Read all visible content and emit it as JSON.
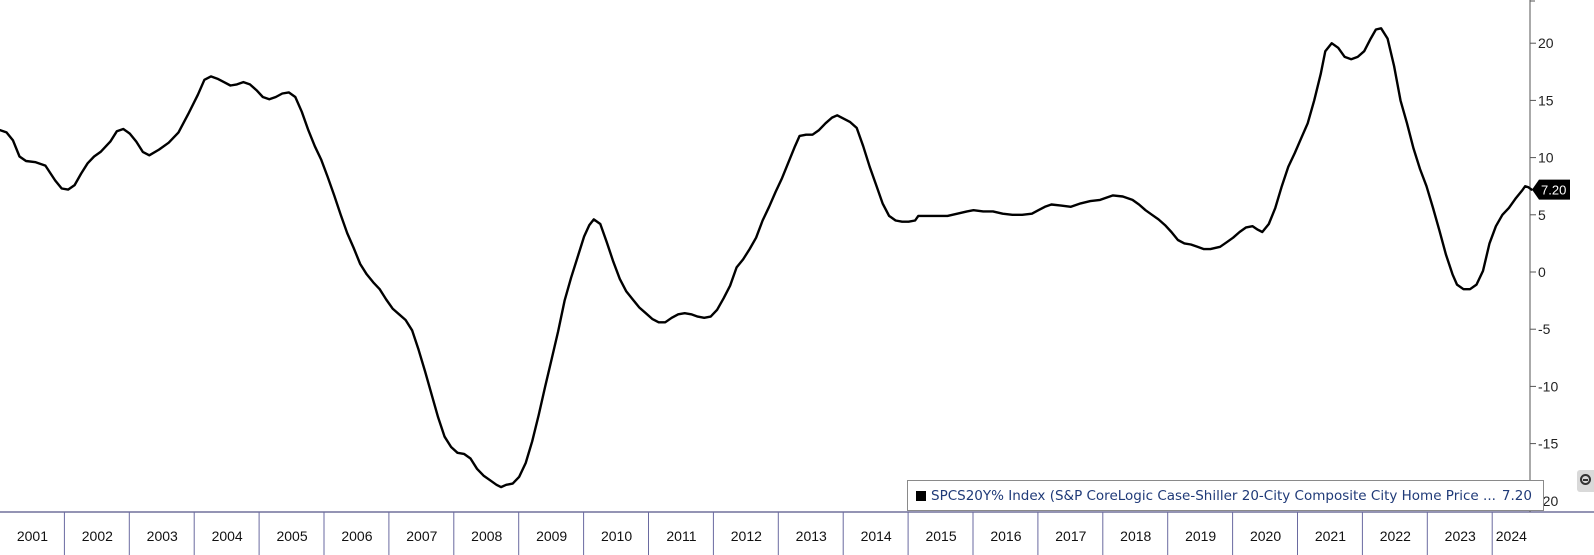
{
  "chart_data": {
    "type": "line",
    "series_label": "SPCS20Y% Index (S&P CoreLogic Case-Shiller 20-City Composite City Home Price ...",
    "last_value_label": "7.20",
    "ylim": [
      -20,
      22.5
    ],
    "yticks": [
      20,
      15,
      10,
      5,
      0,
      -5,
      -10,
      -15,
      -20
    ],
    "ytick_labels": [
      "20",
      "15",
      "10",
      "5",
      "0",
      "-5",
      "-10",
      "-15",
      "-20"
    ],
    "xlim": [
      2001,
      2024.5
    ],
    "year_labels": [
      "2001",
      "2002",
      "2003",
      "2004",
      "2005",
      "2006",
      "2007",
      "2008",
      "2009",
      "2010",
      "2011",
      "2012",
      "2013",
      "2014",
      "2015",
      "2016",
      "2017",
      "2018",
      "2019",
      "2020",
      "2021",
      "2022",
      "2023",
      "2024"
    ],
    "series": [
      {
        "color": "#000000",
        "points": [
          [
            2001.0,
            12.4
          ],
          [
            2001.1,
            12.2
          ],
          [
            2001.2,
            11.5
          ],
          [
            2001.3,
            10.1
          ],
          [
            2001.4,
            9.7
          ],
          [
            2001.55,
            9.6
          ],
          [
            2001.7,
            9.3
          ],
          [
            2001.85,
            8.0
          ],
          [
            2001.95,
            7.3
          ],
          [
            2002.05,
            7.2
          ],
          [
            2002.15,
            7.6
          ],
          [
            2002.25,
            8.6
          ],
          [
            2002.35,
            9.5
          ],
          [
            2002.45,
            10.1
          ],
          [
            2002.55,
            10.5
          ],
          [
            2002.7,
            11.4
          ],
          [
            2002.8,
            12.3
          ],
          [
            2002.9,
            12.5
          ],
          [
            2003.0,
            12.1
          ],
          [
            2003.1,
            11.4
          ],
          [
            2003.2,
            10.5
          ],
          [
            2003.3,
            10.2
          ],
          [
            2003.45,
            10.7
          ],
          [
            2003.6,
            11.3
          ],
          [
            2003.75,
            12.2
          ],
          [
            2003.9,
            13.8
          ],
          [
            2004.05,
            15.5
          ],
          [
            2004.15,
            16.8
          ],
          [
            2004.25,
            17.1
          ],
          [
            2004.35,
            16.9
          ],
          [
            2004.45,
            16.6
          ],
          [
            2004.55,
            16.3
          ],
          [
            2004.65,
            16.4
          ],
          [
            2004.75,
            16.6
          ],
          [
            2004.85,
            16.4
          ],
          [
            2004.95,
            15.9
          ],
          [
            2005.05,
            15.3
          ],
          [
            2005.15,
            15.1
          ],
          [
            2005.25,
            15.3
          ],
          [
            2005.35,
            15.6
          ],
          [
            2005.45,
            15.7
          ],
          [
            2005.55,
            15.3
          ],
          [
            2005.65,
            14.0
          ],
          [
            2005.75,
            12.4
          ],
          [
            2005.85,
            11.0
          ],
          [
            2005.95,
            9.8
          ],
          [
            2006.05,
            8.3
          ],
          [
            2006.15,
            6.7
          ],
          [
            2006.25,
            5.0
          ],
          [
            2006.35,
            3.4
          ],
          [
            2006.45,
            2.1
          ],
          [
            2006.55,
            0.7
          ],
          [
            2006.65,
            -0.2
          ],
          [
            2006.75,
            -0.9
          ],
          [
            2006.85,
            -1.5
          ],
          [
            2006.95,
            -2.4
          ],
          [
            2007.05,
            -3.2
          ],
          [
            2007.15,
            -3.7
          ],
          [
            2007.25,
            -4.2
          ],
          [
            2007.35,
            -5.1
          ],
          [
            2007.45,
            -6.8
          ],
          [
            2007.55,
            -8.7
          ],
          [
            2007.65,
            -10.7
          ],
          [
            2007.75,
            -12.7
          ],
          [
            2007.85,
            -14.4
          ],
          [
            2007.95,
            -15.3
          ],
          [
            2008.05,
            -15.8
          ],
          [
            2008.15,
            -15.9
          ],
          [
            2008.25,
            -16.3
          ],
          [
            2008.35,
            -17.2
          ],
          [
            2008.45,
            -17.8
          ],
          [
            2008.55,
            -18.2
          ],
          [
            2008.65,
            -18.6
          ],
          [
            2008.72,
            -18.8
          ],
          [
            2008.8,
            -18.6
          ],
          [
            2008.9,
            -18.5
          ],
          [
            2009.0,
            -17.9
          ],
          [
            2009.1,
            -16.7
          ],
          [
            2009.2,
            -14.8
          ],
          [
            2009.3,
            -12.5
          ],
          [
            2009.4,
            -10.0
          ],
          [
            2009.5,
            -7.6
          ],
          [
            2009.6,
            -5.2
          ],
          [
            2009.7,
            -2.5
          ],
          [
            2009.8,
            -0.5
          ],
          [
            2009.9,
            1.3
          ],
          [
            2010.0,
            3.1
          ],
          [
            2010.08,
            4.1
          ],
          [
            2010.15,
            4.6
          ],
          [
            2010.25,
            4.2
          ],
          [
            2010.35,
            2.6
          ],
          [
            2010.45,
            0.9
          ],
          [
            2010.55,
            -0.6
          ],
          [
            2010.65,
            -1.7
          ],
          [
            2010.75,
            -2.4
          ],
          [
            2010.85,
            -3.1
          ],
          [
            2010.95,
            -3.6
          ],
          [
            2011.05,
            -4.1
          ],
          [
            2011.15,
            -4.4
          ],
          [
            2011.25,
            -4.4
          ],
          [
            2011.35,
            -4.0
          ],
          [
            2011.45,
            -3.7
          ],
          [
            2011.55,
            -3.6
          ],
          [
            2011.65,
            -3.7
          ],
          [
            2011.75,
            -3.9
          ],
          [
            2011.85,
            -4.0
          ],
          [
            2011.95,
            -3.9
          ],
          [
            2012.05,
            -3.3
          ],
          [
            2012.15,
            -2.3
          ],
          [
            2012.25,
            -1.2
          ],
          [
            2012.35,
            0.4
          ],
          [
            2012.45,
            1.1
          ],
          [
            2012.55,
            2.0
          ],
          [
            2012.65,
            3.0
          ],
          [
            2012.75,
            4.5
          ],
          [
            2012.85,
            5.7
          ],
          [
            2012.95,
            7.0
          ],
          [
            2013.05,
            8.2
          ],
          [
            2013.15,
            9.6
          ],
          [
            2013.25,
            11.0
          ],
          [
            2013.32,
            11.9
          ],
          [
            2013.42,
            12.0
          ],
          [
            2013.52,
            12.0
          ],
          [
            2013.62,
            12.4
          ],
          [
            2013.72,
            13.0
          ],
          [
            2013.82,
            13.5
          ],
          [
            2013.9,
            13.7
          ],
          [
            2014.0,
            13.4
          ],
          [
            2014.1,
            13.1
          ],
          [
            2014.2,
            12.6
          ],
          [
            2014.3,
            11.0
          ],
          [
            2014.4,
            9.2
          ],
          [
            2014.5,
            7.6
          ],
          [
            2014.6,
            6.0
          ],
          [
            2014.7,
            4.9
          ],
          [
            2014.8,
            4.5
          ],
          [
            2014.9,
            4.4
          ],
          [
            2015.0,
            4.4
          ],
          [
            2015.1,
            4.5
          ],
          [
            2015.15,
            4.9
          ],
          [
            2015.3,
            4.9
          ],
          [
            2015.45,
            4.9
          ],
          [
            2015.6,
            4.9
          ],
          [
            2015.75,
            5.1
          ],
          [
            2015.9,
            5.3
          ],
          [
            2016.0,
            5.4
          ],
          [
            2016.15,
            5.3
          ],
          [
            2016.3,
            5.3
          ],
          [
            2016.45,
            5.1
          ],
          [
            2016.6,
            5.0
          ],
          [
            2016.75,
            5.0
          ],
          [
            2016.9,
            5.1
          ],
          [
            2017.0,
            5.4
          ],
          [
            2017.1,
            5.7
          ],
          [
            2017.2,
            5.9
          ],
          [
            2017.35,
            5.8
          ],
          [
            2017.5,
            5.7
          ],
          [
            2017.65,
            6.0
          ],
          [
            2017.8,
            6.2
          ],
          [
            2017.95,
            6.3
          ],
          [
            2018.05,
            6.5
          ],
          [
            2018.15,
            6.7
          ],
          [
            2018.3,
            6.6
          ],
          [
            2018.45,
            6.3
          ],
          [
            2018.55,
            5.9
          ],
          [
            2018.65,
            5.4
          ],
          [
            2018.75,
            5.0
          ],
          [
            2018.85,
            4.6
          ],
          [
            2018.95,
            4.1
          ],
          [
            2019.05,
            3.5
          ],
          [
            2019.15,
            2.8
          ],
          [
            2019.25,
            2.5
          ],
          [
            2019.35,
            2.4
          ],
          [
            2019.45,
            2.2
          ],
          [
            2019.55,
            2.0
          ],
          [
            2019.65,
            2.0
          ],
          [
            2019.8,
            2.2
          ],
          [
            2019.9,
            2.6
          ],
          [
            2020.0,
            3.0
          ],
          [
            2020.1,
            3.5
          ],
          [
            2020.2,
            3.9
          ],
          [
            2020.3,
            4.0
          ],
          [
            2020.38,
            3.7
          ],
          [
            2020.45,
            3.5
          ],
          [
            2020.55,
            4.2
          ],
          [
            2020.65,
            5.6
          ],
          [
            2020.75,
            7.5
          ],
          [
            2020.85,
            9.2
          ],
          [
            2020.95,
            10.4
          ],
          [
            2021.05,
            11.7
          ],
          [
            2021.15,
            13.0
          ],
          [
            2021.25,
            15.0
          ],
          [
            2021.35,
            17.3
          ],
          [
            2021.42,
            19.3
          ],
          [
            2021.52,
            20.0
          ],
          [
            2021.62,
            19.6
          ],
          [
            2021.72,
            18.8
          ],
          [
            2021.82,
            18.6
          ],
          [
            2021.92,
            18.8
          ],
          [
            2022.02,
            19.3
          ],
          [
            2022.12,
            20.4
          ],
          [
            2022.2,
            21.2
          ],
          [
            2022.28,
            21.3
          ],
          [
            2022.38,
            20.4
          ],
          [
            2022.48,
            18.0
          ],
          [
            2022.58,
            15.0
          ],
          [
            2022.68,
            13.0
          ],
          [
            2022.78,
            10.8
          ],
          [
            2022.88,
            9.0
          ],
          [
            2022.98,
            7.5
          ],
          [
            2023.08,
            5.6
          ],
          [
            2023.18,
            3.6
          ],
          [
            2023.28,
            1.5
          ],
          [
            2023.38,
            -0.2
          ],
          [
            2023.45,
            -1.1
          ],
          [
            2023.55,
            -1.5
          ],
          [
            2023.65,
            -1.5
          ],
          [
            2023.75,
            -1.1
          ],
          [
            2023.85,
            0.1
          ],
          [
            2023.95,
            2.5
          ],
          [
            2024.05,
            4.0
          ],
          [
            2024.15,
            5.0
          ],
          [
            2024.25,
            5.6
          ],
          [
            2024.35,
            6.4
          ],
          [
            2024.45,
            7.1
          ],
          [
            2024.5,
            7.5
          ],
          [
            2024.55,
            7.4
          ],
          [
            2024.6,
            7.2
          ]
        ]
      }
    ]
  }
}
